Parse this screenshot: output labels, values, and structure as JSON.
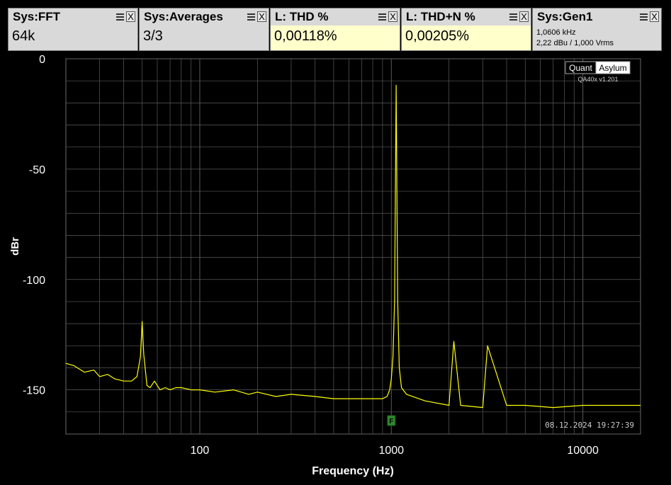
{
  "panels": [
    {
      "title": "Sys:FFT",
      "value": "64k",
      "bg": "#d9d9d9"
    },
    {
      "title": "Sys:Averages",
      "value": "3/3",
      "bg": "#d9d9d9"
    },
    {
      "title": "L: THD %",
      "value": "0,00118%",
      "bg": "#ffffcc"
    },
    {
      "title": "L: THD+N %",
      "value": "0,00205%",
      "bg": "#ffffcc"
    },
    {
      "title": "Sys:Gen1",
      "line1": "1,0606 kHz",
      "line2": "2,22 dBu  / 1,000 Vrms",
      "bg": "#d9d9d9"
    }
  ],
  "close_label": "X",
  "brand": {
    "part1": "Quant",
    "part2": "Asylum",
    "version": "QA40x v1.201"
  },
  "timestamp": "08.12.2024 19:27:39",
  "marker_label": "F",
  "colors": {
    "trace": "#ffff00",
    "grid": "#5a5a5a",
    "marker": "#2e8b2e"
  },
  "chart_data": {
    "type": "line",
    "xlabel": "Frequency (Hz)",
    "ylabel": "dBr",
    "xscale": "log",
    "xlim": [
      20,
      20000
    ],
    "ylim": [
      -170,
      0
    ],
    "xticks": [
      100,
      1000,
      10000
    ],
    "xtick_labels": [
      "100",
      "1000",
      "10000"
    ],
    "yticks": [
      0,
      -50,
      -100,
      -150
    ],
    "ytick_labels": [
      "0",
      "-50",
      "-100",
      "-150"
    ],
    "grid": true,
    "series": [
      {
        "x": [
          20,
          22,
          25,
          28,
          30,
          33,
          36,
          40,
          44,
          47,
          49,
          50,
          51,
          53,
          55,
          58,
          62,
          66,
          70,
          75,
          80,
          90,
          100,
          120,
          150,
          180,
          200,
          250,
          300,
          400,
          500,
          600,
          700,
          800,
          900,
          950,
          980,
          1000,
          1020,
          1040,
          1060,
          1080,
          1100,
          1130,
          1200,
          1500,
          2000,
          2120,
          2300,
          3000,
          3180,
          4000,
          5000,
          7000,
          10000,
          15000,
          20000
        ],
        "y": [
          -138,
          -139,
          -142,
          -141,
          -144,
          -143,
          -145,
          -146,
          -146,
          -144,
          -135,
          -119,
          -134,
          -148,
          -149,
          -146,
          -150,
          -149,
          -150,
          -149,
          -149,
          -150,
          -150,
          -151,
          -150,
          -152,
          -151,
          -153,
          -152,
          -153,
          -154,
          -154,
          -154,
          -154,
          -154,
          -153,
          -150,
          -145,
          -135,
          -110,
          -12,
          -110,
          -140,
          -149,
          -152,
          -155,
          -157,
          -128,
          -157,
          -158,
          -130,
          -157,
          -157,
          -158,
          -157,
          -157,
          -157
        ]
      }
    ]
  }
}
